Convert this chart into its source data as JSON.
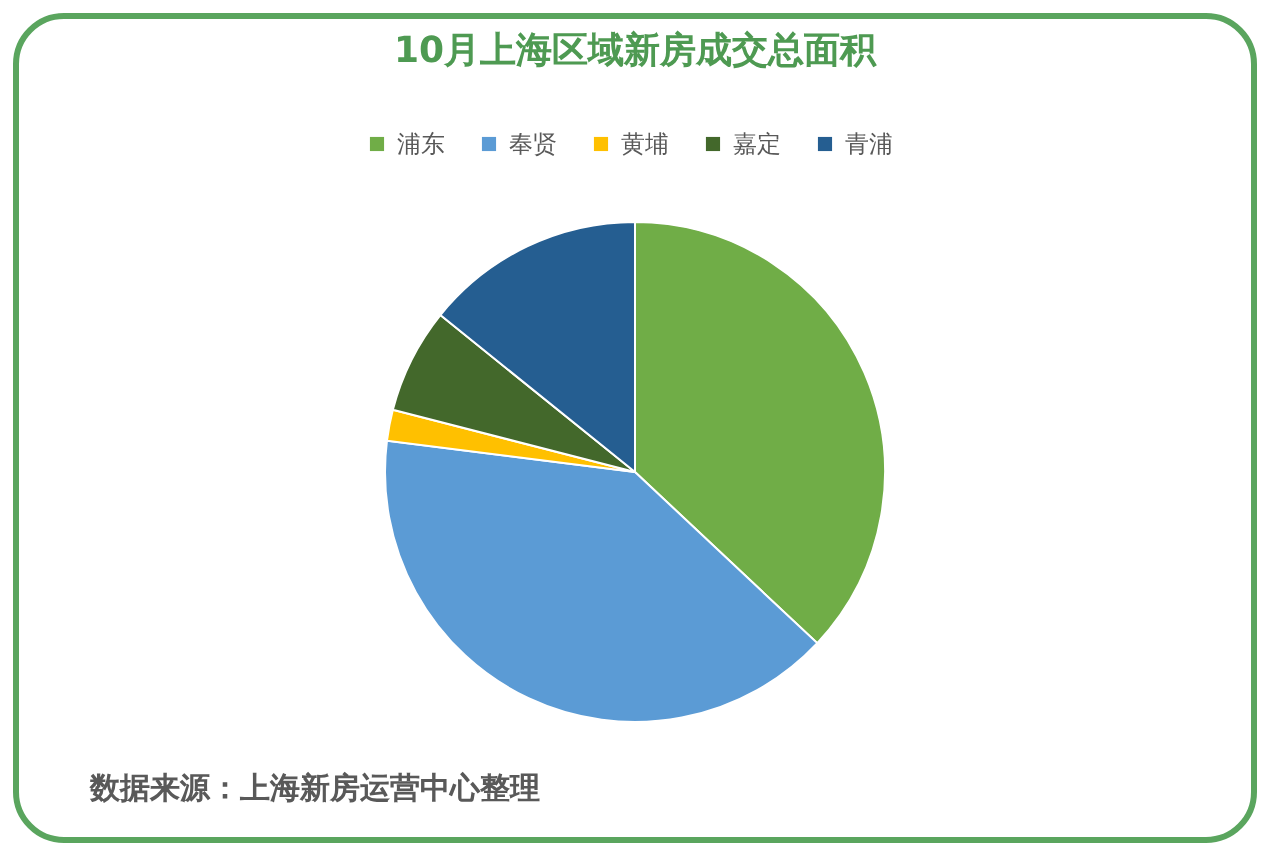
{
  "chart_data": {
    "type": "pie",
    "title": "10月上海区域新房成交总面积",
    "categories": [
      "浦东",
      "奉贤",
      "黄埔",
      "嘉定",
      "青浦"
    ],
    "values": [
      37.0,
      40.0,
      2.0,
      6.8,
      14.2
    ],
    "colors": [
      "#70ad47",
      "#5b9bd5",
      "#ffc000",
      "#43682b",
      "#255e91"
    ],
    "legend": "top",
    "annotations": [
      "数据来源：上海新房运营中心整理"
    ]
  }
}
